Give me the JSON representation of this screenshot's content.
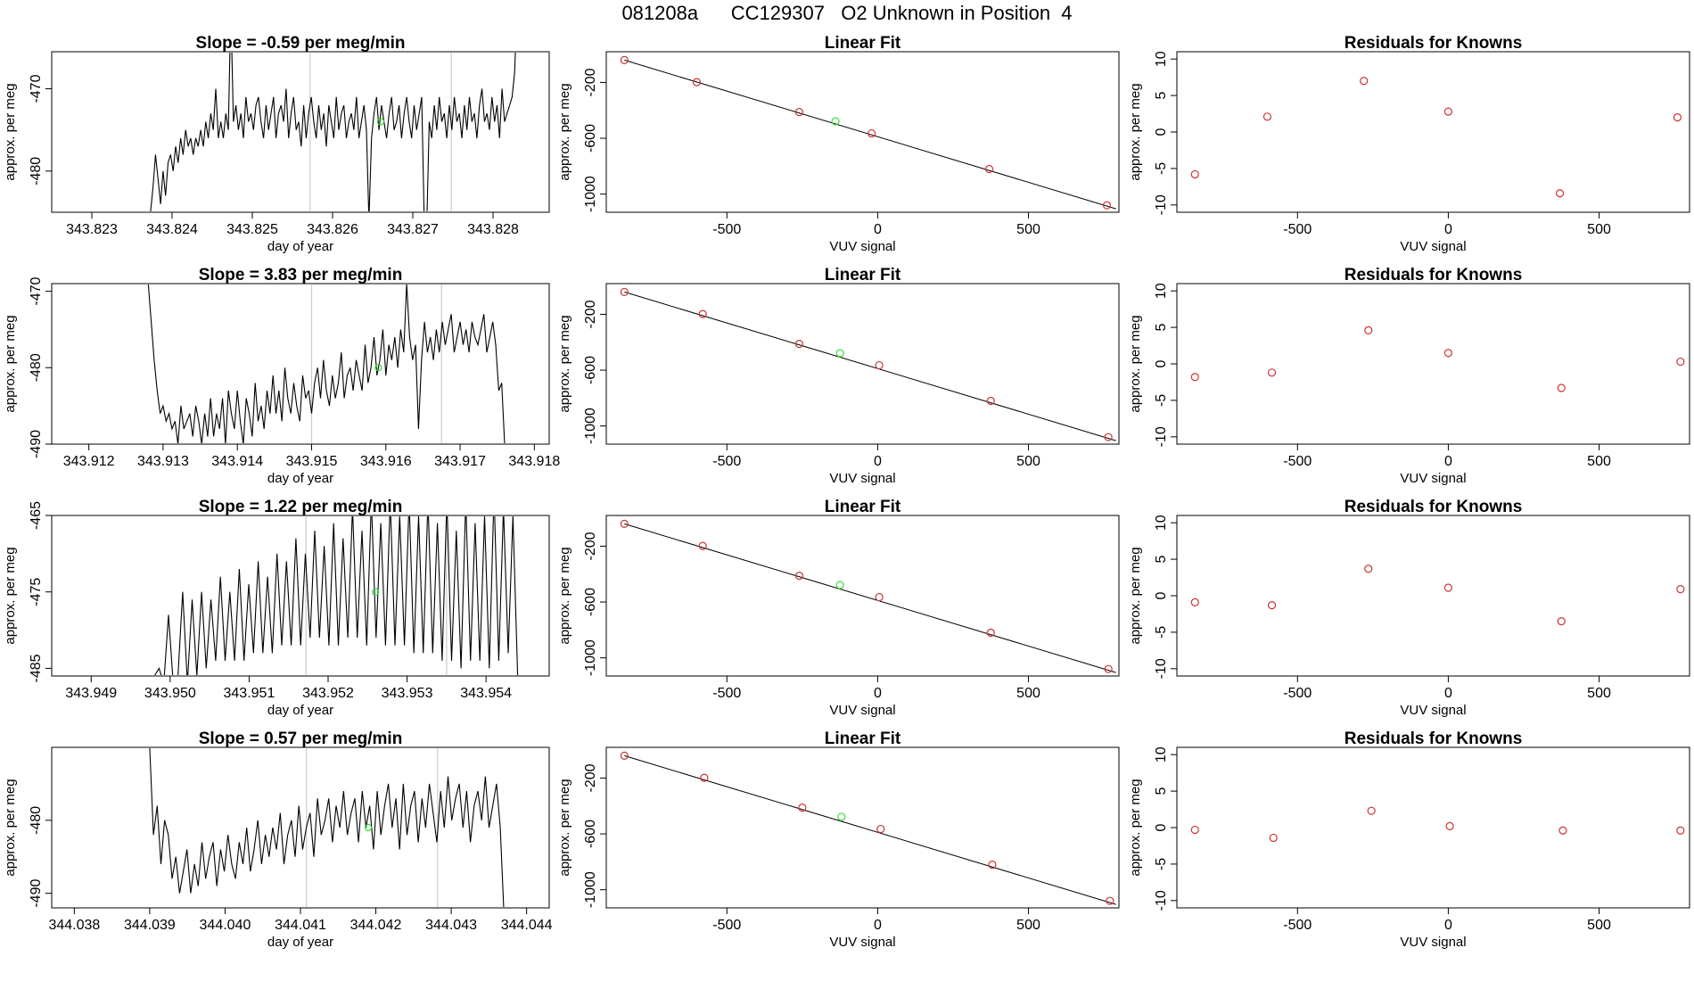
{
  "page_title": "081208a      CC129307   O2 Unknown in Position  4",
  "colors": {
    "axis": "#000000",
    "trace": "#000000",
    "known_point": "#cc3333",
    "unknown_point": "#33dd33",
    "marker_line": "#cccccc"
  },
  "chart_data": [
    {
      "type": "line",
      "row": 0,
      "panel": "time-series",
      "title": "Slope =  -0.59  per meg/min",
      "xlabel": "day of year",
      "ylabel": "approx. per meg",
      "xlim": [
        343.8225,
        343.8287
      ],
      "ylim": [
        -485,
        -465.5
      ],
      "xticks": [
        "343.823",
        "343.824",
        "343.825",
        "343.826",
        "343.827",
        "343.828"
      ],
      "xtick_values": [
        343.823,
        343.824,
        343.825,
        343.826,
        343.827,
        343.828
      ],
      "yticks": [
        "-470",
        "-480"
      ],
      "ytick_values": [
        -470,
        -480
      ],
      "markers": [
        343.82572,
        343.82748
      ],
      "unknown_point": [
        343.8266,
        -474
      ],
      "series_x_range": [
        343.8237,
        343.8283
      ],
      "values": [
        -486,
        -485,
        -482,
        -478,
        -481,
        -484,
        -480,
        -483,
        -479,
        -478,
        -480,
        -477,
        -479,
        -476,
        -478,
        -475,
        -477,
        -476,
        -478,
        -476,
        -477,
        -475,
        -477,
        -474,
        -476,
        -473,
        -475,
        -470,
        -476,
        -474,
        -476,
        -473,
        -475,
        -460,
        -474,
        -472,
        -475,
        -473,
        -476,
        -471,
        -474,
        -473,
        -475,
        -472,
        -471,
        -474,
        -476,
        -472,
        -475,
        -473,
        -471,
        -476,
        -473,
        -472,
        -474,
        -470,
        -476,
        -473,
        -471,
        -475,
        -474,
        -477,
        -472,
        -476,
        -473,
        -471,
        -474,
        -476,
        -472,
        -475,
        -473,
        -477,
        -472,
        -474,
        -476,
        -471,
        -475,
        -473,
        -472,
        -476,
        -474,
        -473,
        -475,
        -471,
        -476,
        -474,
        -472,
        -475,
        -486,
        -476,
        -473,
        -471,
        -475,
        -472,
        -474,
        -476,
        -473,
        -471,
        -475,
        -474,
        -472,
        -476,
        -473,
        -471,
        -474,
        -476,
        -472,
        -475,
        -473,
        -471,
        -486,
        -487,
        -474,
        -476,
        -472,
        -475,
        -471,
        -474,
        -473,
        -476,
        -472,
        -475,
        -471,
        -474,
        -473,
        -476,
        -472,
        -475,
        -471,
        -474,
        -473,
        -476,
        -472,
        -470,
        -474,
        -473,
        -475,
        -471,
        -474,
        -472,
        -476,
        -470,
        -474,
        -473,
        -472,
        -471,
        -468,
        -460
      ]
    },
    {
      "type": "scatter",
      "row": 0,
      "panel": "linear-fit",
      "title": "Linear Fit",
      "xlabel": "VUV signal",
      "ylabel": "approx. per meg",
      "xlim": [
        -900,
        800
      ],
      "ylim": [
        -1130,
        20
      ],
      "xticks": [
        "-500",
        "0",
        "500"
      ],
      "xtick_values": [
        -500,
        0,
        500
      ],
      "yticks": [
        "-200",
        "-600",
        "-1000"
      ],
      "ytick_values": [
        -200,
        -600,
        -1000
      ],
      "fit_line": {
        "x": [
          -840,
          790
        ],
        "y": [
          -40,
          -1105
        ]
      },
      "known_points": {
        "x": [
          -840,
          -600,
          -260,
          -20,
          370,
          760
        ],
        "y": [
          -40,
          -198,
          -412,
          -565,
          -820,
          -1080
        ]
      },
      "unknown_point": [
        -140,
        -478
      ]
    },
    {
      "type": "scatter",
      "row": 0,
      "panel": "residuals",
      "title": "Residuals for Knowns",
      "xlabel": "VUV signal",
      "ylabel": "approx. per meg",
      "xlim": [
        -900,
        800
      ],
      "ylim": [
        -11,
        11
      ],
      "xticks": [
        "-500",
        "0",
        "500"
      ],
      "xtick_values": [
        -500,
        0,
        500
      ],
      "yticks": [
        "10",
        "5",
        "0",
        "-5",
        "-10"
      ],
      "ytick_values": [
        10,
        5,
        0,
        -5,
        -10
      ],
      "x": [
        -840,
        -600,
        -280,
        0,
        370,
        760
      ],
      "y": [
        -5.8,
        2.1,
        7.0,
        2.8,
        -8.4,
        2.0
      ]
    },
    {
      "type": "line",
      "row": 1,
      "panel": "time-series",
      "title": "Slope =  3.83  per meg/min",
      "xlabel": "day of year",
      "ylabel": "approx. per meg",
      "xlim": [
        343.9115,
        343.9182
      ],
      "ylim": [
        -490,
        -469
      ],
      "xticks": [
        "343.912",
        "343.913",
        "343.914",
        "343.915",
        "343.916",
        "343.917",
        "343.918"
      ],
      "xtick_values": [
        343.912,
        343.913,
        343.914,
        343.915,
        343.916,
        343.917,
        343.918
      ],
      "yticks": [
        "-470",
        "-480",
        "-490"
      ],
      "ytick_values": [
        -470,
        -480,
        -490
      ],
      "markers": [
        343.915,
        343.91675
      ],
      "unknown_point": [
        343.9159,
        -480
      ],
      "series_x_range": [
        343.9128,
        343.9176
      ],
      "values": [
        -469,
        -474,
        -479,
        -483,
        -486,
        -485,
        -487,
        -486,
        -488,
        -487,
        -490,
        -485,
        -488,
        -487,
        -486,
        -489,
        -485,
        -487,
        -490,
        -486,
        -489,
        -484,
        -489,
        -486,
        -488,
        -484,
        -490,
        -483,
        -486,
        -488,
        -483,
        -487,
        -490,
        -484,
        -486,
        -489,
        -482,
        -487,
        -485,
        -488,
        -483,
        -486,
        -481,
        -486,
        -483,
        -487,
        -480,
        -484,
        -486,
        -482,
        -485,
        -487,
        -481,
        -484,
        -483,
        -486,
        -482,
        -480,
        -484,
        -479,
        -483,
        -485,
        -481,
        -484,
        -482,
        -478,
        -484,
        -481,
        -480,
        -483,
        -479,
        -481,
        -483,
        -477,
        -482,
        -480,
        -476,
        -481,
        -479,
        -475,
        -481,
        -477,
        -479,
        -476,
        -480,
        -475,
        -478,
        -469,
        -476,
        -479,
        -477,
        -488,
        -479,
        -474,
        -478,
        -476,
        -479,
        -475,
        -478,
        -474,
        -477,
        -475,
        -473,
        -478,
        -476,
        -474,
        -477,
        -475,
        -478,
        -474,
        -476,
        -477,
        -475,
        -473,
        -478,
        -476,
        -474,
        -477,
        -483,
        -482,
        -490
      ]
    },
    {
      "type": "scatter",
      "row": 1,
      "panel": "linear-fit",
      "title": "Linear Fit",
      "xlabel": "VUV signal",
      "ylabel": "approx. per meg",
      "xlim": [
        -900,
        800
      ],
      "ylim": [
        -1130,
        20
      ],
      "xticks": [
        "-500",
        "0",
        "500"
      ],
      "xtick_values": [
        -500,
        0,
        500
      ],
      "yticks": [
        "-200",
        "-600",
        "-1000"
      ],
      "ytick_values": [
        -200,
        -600,
        -1000
      ],
      "fit_line": {
        "x": [
          -840,
          790
        ],
        "y": [
          -40,
          -1105
        ]
      },
      "known_points": {
        "x": [
          -840,
          -580,
          -260,
          5,
          375,
          765
        ],
        "y": [
          -40,
          -198,
          -412,
          -565,
          -820,
          -1080
        ]
      },
      "unknown_point": [
        -125,
        -478
      ]
    },
    {
      "type": "scatter",
      "row": 1,
      "panel": "residuals",
      "title": "Residuals for Knowns",
      "xlabel": "VUV signal",
      "ylabel": "approx. per meg",
      "xlim": [
        -900,
        800
      ],
      "ylim": [
        -11,
        11
      ],
      "xticks": [
        "-500",
        "0",
        "500"
      ],
      "xtick_values": [
        -500,
        0,
        500
      ],
      "yticks": [
        "10",
        "5",
        "0",
        "-5",
        "-10"
      ],
      "ytick_values": [
        10,
        5,
        0,
        -5,
        -10
      ],
      "x": [
        -840,
        -585,
        -265,
        0,
        375,
        770
      ],
      "y": [
        -1.8,
        -1.2,
        4.6,
        1.5,
        -3.3,
        0.3
      ]
    },
    {
      "type": "line",
      "row": 2,
      "panel": "time-series",
      "title": "Slope =  1.22  per meg/min",
      "xlabel": "day of year",
      "ylabel": "approx. per meg",
      "xlim": [
        343.9485,
        343.9548
      ],
      "ylim": [
        -486,
        -465
      ],
      "xticks": [
        "343.949",
        "343.950",
        "343.951",
        "343.952",
        "343.953",
        "343.954"
      ],
      "xtick_values": [
        343.949,
        343.95,
        343.951,
        343.952,
        343.953,
        343.954
      ],
      "yticks": [
        "-465",
        "-475",
        "-485"
      ],
      "ytick_values": [
        -465,
        -475,
        -485
      ],
      "markers": [
        343.95172,
        343.9535
      ],
      "unknown_point": [
        343.9526,
        -475
      ],
      "series_x_range": [
        343.9498,
        343.9544
      ],
      "values": [
        -486,
        -485,
        -487,
        -478,
        -487,
        -486,
        -475,
        -487,
        -476,
        -486,
        -475,
        -485,
        -476,
        -484,
        -473,
        -484,
        -475,
        -484,
        -472,
        -484,
        -474,
        -483,
        -471,
        -483,
        -473,
        -483,
        -470,
        -482,
        -471,
        -482,
        -468,
        -482,
        -470,
        -481,
        -467,
        -481,
        -469,
        -482,
        -466,
        -482,
        -468,
        -481,
        -464,
        -481,
        -467,
        -482,
        -463,
        -481,
        -466,
        -482,
        -463,
        -482,
        -465,
        -482,
        -463,
        -483,
        -465,
        -483,
        -463,
        -483,
        -466,
        -484,
        -463,
        -484,
        -467,
        -485,
        -463,
        -484,
        -466,
        -484,
        -465,
        -485,
        -462,
        -484,
        -464,
        -483,
        -465,
        -486
      ]
    },
    {
      "type": "scatter",
      "row": 2,
      "panel": "linear-fit",
      "title": "Linear Fit",
      "xlabel": "VUV signal",
      "ylabel": "approx. per meg",
      "xlim": [
        -900,
        800
      ],
      "ylim": [
        -1130,
        20
      ],
      "xticks": [
        "-500",
        "0",
        "500"
      ],
      "xtick_values": [
        -500,
        0,
        500
      ],
      "yticks": [
        "-200",
        "-600",
        "-1000"
      ],
      "ytick_values": [
        -200,
        -600,
        -1000
      ],
      "fit_line": {
        "x": [
          -840,
          790
        ],
        "y": [
          -40,
          -1105
        ]
      },
      "known_points": {
        "x": [
          -840,
          -580,
          -260,
          5,
          375,
          765
        ],
        "y": [
          -40,
          -198,
          -412,
          -565,
          -820,
          -1080
        ]
      },
      "unknown_point": [
        -125,
        -478
      ]
    },
    {
      "type": "scatter",
      "row": 2,
      "panel": "residuals",
      "title": "Residuals for Knowns",
      "xlabel": "VUV signal",
      "ylabel": "approx. per meg",
      "xlim": [
        -900,
        800
      ],
      "ylim": [
        -11,
        11
      ],
      "xticks": [
        "-500",
        "0",
        "500"
      ],
      "xtick_values": [
        -500,
        0,
        500
      ],
      "yticks": [
        "10",
        "5",
        "0",
        "-5",
        "-10"
      ],
      "ytick_values": [
        10,
        5,
        0,
        -5,
        -10
      ],
      "x": [
        -840,
        -585,
        -265,
        0,
        375,
        770
      ],
      "y": [
        -0.9,
        -1.3,
        3.7,
        1.1,
        -3.5,
        0.9
      ]
    },
    {
      "type": "line",
      "row": 3,
      "panel": "time-series",
      "title": "Slope =  0.57  per meg/min",
      "xlabel": "day of year",
      "ylabel": "approx. per meg",
      "xlim": [
        344.0377,
        344.0443
      ],
      "ylim": [
        -492,
        -470
      ],
      "xticks": [
        "344.038",
        "344.039",
        "344.040",
        "344.041",
        "344.042",
        "344.043",
        "344.044"
      ],
      "xtick_values": [
        344.038,
        344.039,
        344.04,
        344.041,
        344.042,
        344.043,
        344.044
      ],
      "yticks": [
        "-480",
        "-490"
      ],
      "ytick_values": [
        -480,
        -490
      ],
      "markers": [
        344.04108,
        344.04282
      ],
      "unknown_point": [
        344.0419,
        -481
      ],
      "series_x_range": [
        344.039,
        344.0437
      ],
      "values": [
        -470,
        -482,
        -478,
        -486,
        -480,
        -482,
        -488,
        -485,
        -490,
        -487,
        -484,
        -490,
        -486,
        -489,
        -483,
        -488,
        -485,
        -483,
        -489,
        -484,
        -487,
        -482,
        -486,
        -488,
        -483,
        -486,
        -481,
        -487,
        -484,
        -480,
        -486,
        -482,
        -485,
        -481,
        -484,
        -479,
        -486,
        -482,
        -480,
        -485,
        -478,
        -484,
        -481,
        -479,
        -485,
        -477,
        -482,
        -480,
        -477,
        -483,
        -478,
        -481,
        -476,
        -482,
        -479,
        -477,
        -483,
        -476,
        -481,
        -478,
        -484,
        -476,
        -482,
        -478,
        -475,
        -481,
        -477,
        -484,
        -475,
        -482,
        -478,
        -476,
        -483,
        -477,
        -481,
        -475,
        -479,
        -483,
        -476,
        -481,
        -474,
        -480,
        -477,
        -475,
        -481,
        -476,
        -483,
        -478,
        -476,
        -480,
        -474,
        -481,
        -478,
        -475,
        -481,
        -493
      ]
    },
    {
      "type": "scatter",
      "row": 3,
      "panel": "linear-fit",
      "title": "Linear Fit",
      "xlabel": "VUV signal",
      "ylabel": "approx. per meg",
      "xlim": [
        -900,
        800
      ],
      "ylim": [
        -1130,
        20
      ],
      "xticks": [
        "-500",
        "0",
        "500"
      ],
      "xtick_values": [
        -500,
        0,
        500
      ],
      "yticks": [
        "-200",
        "-600",
        "-1000"
      ],
      "ytick_values": [
        -200,
        -600,
        -1000
      ],
      "fit_line": {
        "x": [
          -840,
          790
        ],
        "y": [
          -40,
          -1105
        ]
      },
      "known_points": {
        "x": [
          -840,
          -575,
          -250,
          10,
          380,
          770
        ],
        "y": [
          -40,
          -198,
          -412,
          -565,
          -820,
          -1080
        ]
      },
      "unknown_point": [
        -120,
        -478
      ]
    },
    {
      "type": "scatter",
      "row": 3,
      "panel": "residuals",
      "title": "Residuals for Knowns",
      "xlabel": "VUV signal",
      "ylabel": "approx. per meg",
      "xlim": [
        -900,
        800
      ],
      "ylim": [
        -11,
        11
      ],
      "xticks": [
        "-500",
        "0",
        "500"
      ],
      "xtick_values": [
        -500,
        0,
        500
      ],
      "yticks": [
        "10",
        "5",
        "0",
        "-5",
        "-10"
      ],
      "ytick_values": [
        10,
        5,
        0,
        -5,
        -10
      ],
      "x": [
        -840,
        -580,
        -255,
        5,
        380,
        770
      ],
      "y": [
        -0.3,
        -1.4,
        2.3,
        0.2,
        -0.4,
        -0.4
      ]
    }
  ]
}
